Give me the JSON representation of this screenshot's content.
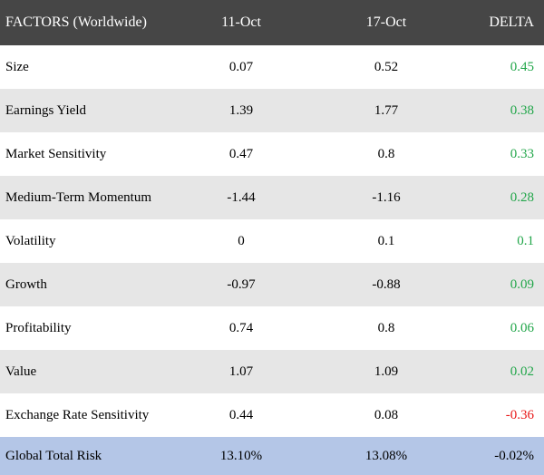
{
  "header": {
    "factor_label": "FACTORS (Worldwide)",
    "date1_label": "11-Oct",
    "date2_label": "17-Oct",
    "delta_label": "DELTA"
  },
  "rows": [
    {
      "factor": "Size",
      "date1": "0.07",
      "date2": "0.52",
      "delta": "0.45"
    },
    {
      "factor": "Earnings Yield",
      "date1": "1.39",
      "date2": "1.77",
      "delta": "0.38"
    },
    {
      "factor": "Market Sensitivity",
      "date1": "0.47",
      "date2": "0.8",
      "delta": "0.33"
    },
    {
      "factor": "Medium-Term Momentum",
      "date1": "-1.44",
      "date2": "-1.16",
      "delta": "0.28"
    },
    {
      "factor": "Volatility",
      "date1": "0",
      "date2": "0.1",
      "delta": "0.1"
    },
    {
      "factor": "Growth",
      "date1": "-0.97",
      "date2": "-0.88",
      "delta": "0.09"
    },
    {
      "factor": "Profitability",
      "date1": "0.74",
      "date2": "0.8",
      "delta": "0.06"
    },
    {
      "factor": "Value",
      "date1": "1.07",
      "date2": "1.09",
      "delta": "0.02"
    },
    {
      "factor": "Exchange Rate Sensitivity",
      "date1": "0.44",
      "date2": "0.08",
      "delta": "-0.36"
    }
  ],
  "total": {
    "factor": "Global Total Risk",
    "date1": "13.10%",
    "date2": "13.08%",
    "delta": "-0.02%"
  },
  "colors": {
    "header_bg": "#464646",
    "header_text": "#ffffff",
    "row_alt_bg": "#e6e6e6",
    "total_bg": "#b4c6e7",
    "positive_delta": "#22a64a",
    "negative_delta": "#e81818"
  }
}
